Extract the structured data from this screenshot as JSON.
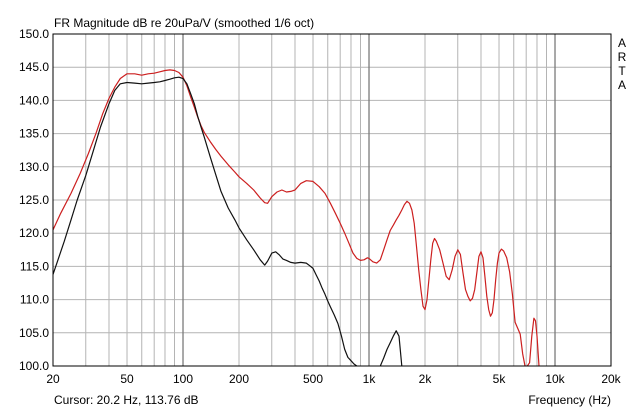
{
  "chart_data": {
    "type": "line",
    "title": "FR Magnitude dB re 20uPa/V (smoothed 1/6 oct)",
    "xlabel": "Frequency (Hz)",
    "ylabel": "",
    "x_scale": "log",
    "xlim": [
      20,
      20000
    ],
    "ylim": [
      100,
      150
    ],
    "grid": true,
    "side_label": "ARTA",
    "cursor_text": "Cursor: 20.2 Hz, 113.76 dB",
    "y_ticks": [
      {
        "value": 100,
        "label": "100.0"
      },
      {
        "value": 105,
        "label": "105.0"
      },
      {
        "value": 110,
        "label": "110.0"
      },
      {
        "value": 115,
        "label": "115.0"
      },
      {
        "value": 120,
        "label": "120.0"
      },
      {
        "value": 125,
        "label": "125.0"
      },
      {
        "value": 130,
        "label": "130.0"
      },
      {
        "value": 135,
        "label": "135.0"
      },
      {
        "value": 140,
        "label": "140.0"
      },
      {
        "value": 145,
        "label": "145.0"
      },
      {
        "value": 150,
        "label": "150.0"
      }
    ],
    "x_ticks": [
      {
        "value": 20,
        "label": "20"
      },
      {
        "value": 50,
        "label": "50"
      },
      {
        "value": 100,
        "label": "100"
      },
      {
        "value": 200,
        "label": "200"
      },
      {
        "value": 500,
        "label": "500"
      },
      {
        "value": 1000,
        "label": "1k"
      },
      {
        "value": 2000,
        "label": "2k"
      },
      {
        "value": 5000,
        "label": "5k"
      },
      {
        "value": 10000,
        "label": "10k"
      },
      {
        "value": 20000,
        "label": "20k"
      }
    ],
    "x_grid_minor": [
      30,
      40,
      60,
      70,
      80,
      90,
      300,
      400,
      600,
      700,
      800,
      900,
      3000,
      4000,
      6000,
      7000,
      8000,
      9000
    ],
    "x_grid_major": [
      100,
      1000,
      10000
    ],
    "series": [
      {
        "color": "#cc1f1f",
        "x": [
          20,
          22,
          25,
          28,
          31,
          34,
          37,
          40,
          43,
          46,
          50,
          55,
          60,
          65,
          70,
          75,
          80,
          85,
          90,
          95,
          100,
          105,
          110,
          115,
          120,
          125,
          130,
          140,
          150,
          160,
          175,
          190,
          200,
          220,
          240,
          260,
          275,
          285,
          300,
          320,
          340,
          360,
          380,
          400,
          430,
          460,
          500,
          540,
          580,
          620,
          660,
          700,
          740,
          780,
          820,
          860,
          900,
          940,
          980,
          1000,
          1050,
          1100,
          1150,
          1200,
          1250,
          1300,
          1350,
          1400,
          1450,
          1500,
          1550,
          1600,
          1650,
          1700,
          1750,
          1800,
          1850,
          1900,
          1950,
          2000,
          2050,
          2100,
          2150,
          2200,
          2250,
          2300,
          2400,
          2500,
          2600,
          2700,
          2800,
          2900,
          3000,
          3100,
          3200,
          3300,
          3400,
          3500,
          3600,
          3700,
          3800,
          3900,
          4000,
          4100,
          4200,
          4300,
          4400,
          4500,
          4600,
          4700,
          4800,
          4900,
          5000,
          5150,
          5300,
          5500,
          5700,
          5900,
          6100,
          6300,
          6500,
          6700,
          6900,
          7100,
          7300,
          7500,
          7700,
          7850,
          8000,
          8200
        ],
        "y": [
          120.5,
          123,
          126,
          129,
          132,
          135,
          138,
          140.3,
          142,
          143.3,
          144,
          144,
          143.8,
          144,
          144.1,
          144.3,
          144.5,
          144.6,
          144.5,
          144.2,
          143.5,
          142.2,
          140.5,
          139,
          137.5,
          136.2,
          135.2,
          133.8,
          132.6,
          131.6,
          130.3,
          129.2,
          128.5,
          127.5,
          126.5,
          125.3,
          124.6,
          124.5,
          125.5,
          126.2,
          126.5,
          126.2,
          126.3,
          126.5,
          127.5,
          127.9,
          127.8,
          127,
          126,
          124.5,
          123,
          121.5,
          120,
          118.5,
          117,
          116.2,
          115.9,
          116,
          116.3,
          116.2,
          115.7,
          115.5,
          116,
          117.5,
          119,
          120.4,
          121.2,
          122,
          122.7,
          123.5,
          124.3,
          124.8,
          124.5,
          123.5,
          121.5,
          118,
          114.5,
          111.5,
          109,
          108.5,
          110,
          113,
          116,
          118.5,
          119.2,
          118.8,
          117.5,
          115.5,
          113.5,
          113,
          114.5,
          116.5,
          117.5,
          116.8,
          114,
          111.5,
          110.5,
          109.8,
          110.2,
          111.5,
          114,
          116.5,
          117.2,
          116.3,
          113.5,
          110.5,
          108.5,
          107.5,
          108,
          110,
          113,
          115.5,
          117,
          117.6,
          117.3,
          116.3,
          114.2,
          110.8,
          106.6,
          105.7,
          104.8,
          101.8,
          100,
          100,
          100.5,
          104.5,
          107.2,
          106.8,
          104.5,
          100
        ]
      },
      {
        "color": "#111111",
        "x": [
          20,
          21,
          22,
          23,
          25,
          27,
          30,
          33,
          36,
          40,
          43,
          46,
          50,
          55,
          60,
          65,
          70,
          75,
          80,
          85,
          90,
          95,
          100,
          105,
          110,
          115,
          120,
          125,
          130,
          140,
          150,
          160,
          175,
          190,
          200,
          220,
          240,
          260,
          275,
          285,
          300,
          315,
          330,
          345,
          360,
          380,
          400,
          430,
          460,
          480,
          500,
          520,
          540,
          560,
          580,
          600,
          620,
          650,
          680,
          710,
          740,
          770,
          800,
          830,
          860,
          1150,
          1200,
          1250,
          1300,
          1350,
          1400,
          1450,
          1500
        ],
        "y": [
          113.8,
          115.5,
          117.2,
          118.8,
          122,
          125,
          128.7,
          132.5,
          136,
          139.5,
          141.5,
          142.5,
          142.7,
          142.6,
          142.5,
          142.6,
          142.7,
          142.8,
          143,
          143.2,
          143.4,
          143.5,
          143.3,
          142.5,
          141,
          139.5,
          137.6,
          136,
          134.5,
          131.5,
          128.8,
          126.3,
          123.8,
          122,
          120.8,
          119,
          117.5,
          116,
          115.2,
          115.8,
          117,
          117.2,
          116.7,
          116.1,
          115.9,
          115.6,
          115.5,
          115.6,
          115.5,
          115.1,
          114.7,
          113.7,
          112.8,
          111.7,
          110.8,
          109.8,
          108.9,
          107.7,
          106.4,
          104.6,
          102.5,
          101.3,
          100.8,
          100.3,
          100,
          100,
          101.2,
          102.5,
          103.5,
          104.5,
          105.3,
          104.5,
          100
        ]
      }
    ]
  }
}
